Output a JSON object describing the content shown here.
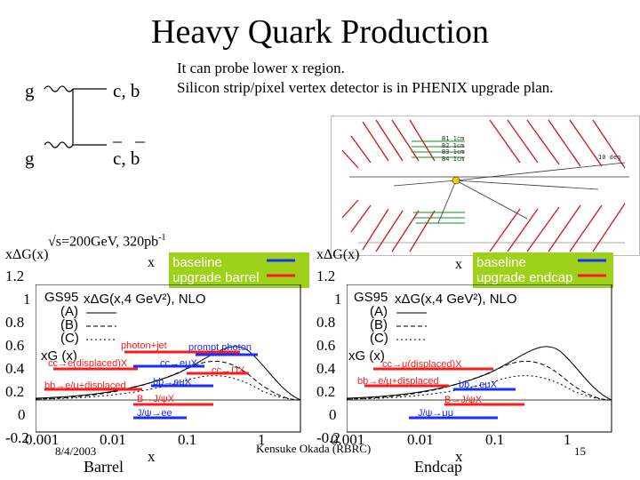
{
  "slide": {
    "title": "Heavy Quark Production",
    "probe_line1": "It can probe lower x region.",
    "probe_line2": "Silicon strip/pixel vertex detector is in PHENIX upgrade plan.",
    "date": "8/4/2003",
    "author": "Kensuke Okada (RBRC)",
    "page_number": "15"
  },
  "feynman": {
    "g_top": "g",
    "g_bottom": "g",
    "cb_top": "c, b",
    "cb_bottom": "c, b"
  },
  "detector": {
    "lines": [
      "B1 1cm",
      "B2 1cm",
      "B3 1cm",
      "B4 1cm"
    ],
    "deg": "10 deg"
  },
  "plot_common": {
    "energy": "√s=200GeV, 320pb",
    "energy_sup": "-1",
    "ylabel": "xΔG(x)",
    "xlabel": "x",
    "xG_label": "xG (x)",
    "gs_title": "GS95",
    "gs_sub": "xΔG(x,4 GeV²), NLO",
    "gs_A": "(A)",
    "gs_B": "(B)",
    "gs_C": "(C)",
    "yticks": [
      "1.2",
      "1",
      "0.8",
      "0.6",
      "0.4",
      "0.2",
      "0",
      "-0.2"
    ],
    "xticks": [
      "0.001",
      "0.01",
      "0.1",
      "1"
    ]
  },
  "plot_barrel": {
    "caption": "Barrel",
    "legend_baseline": "baseline",
    "legend_upgrade": "upgrade barrel",
    "labels": {
      "photon_jet": "photon+jet",
      "prompt_photon": "prompt photon",
      "cc_e_displaced": "cc→e(displaced)X",
      "cc_emu": "cc→eμX",
      "cc_dx": "cc→DX",
      "bb_emu_displaced": "bb→e/μ+displaced",
      "bb_emu": "bb→eμX",
      "b_jpsi": "B→J/ψX",
      "jpsi_ee": "J/ψ→ee"
    }
  },
  "plot_endcap": {
    "caption": "Endcap",
    "legend_baseline": "baseline",
    "legend_upgrade": "upgrade endcap",
    "labels": {
      "cc_mu_displaced": "cc→μ(displaced)X",
      "bb_emu_displaced": "bb→e/μ+displaced",
      "bb_emu": "bb→eμX",
      "b_jpsi": "B→J/ψX",
      "jpsi_mumu": "J/ψ→μμ"
    }
  },
  "colors": {
    "baseline": "#1a2dff",
    "upgrade": "#ff1a1a",
    "legend_bg": "#9ed11a"
  }
}
